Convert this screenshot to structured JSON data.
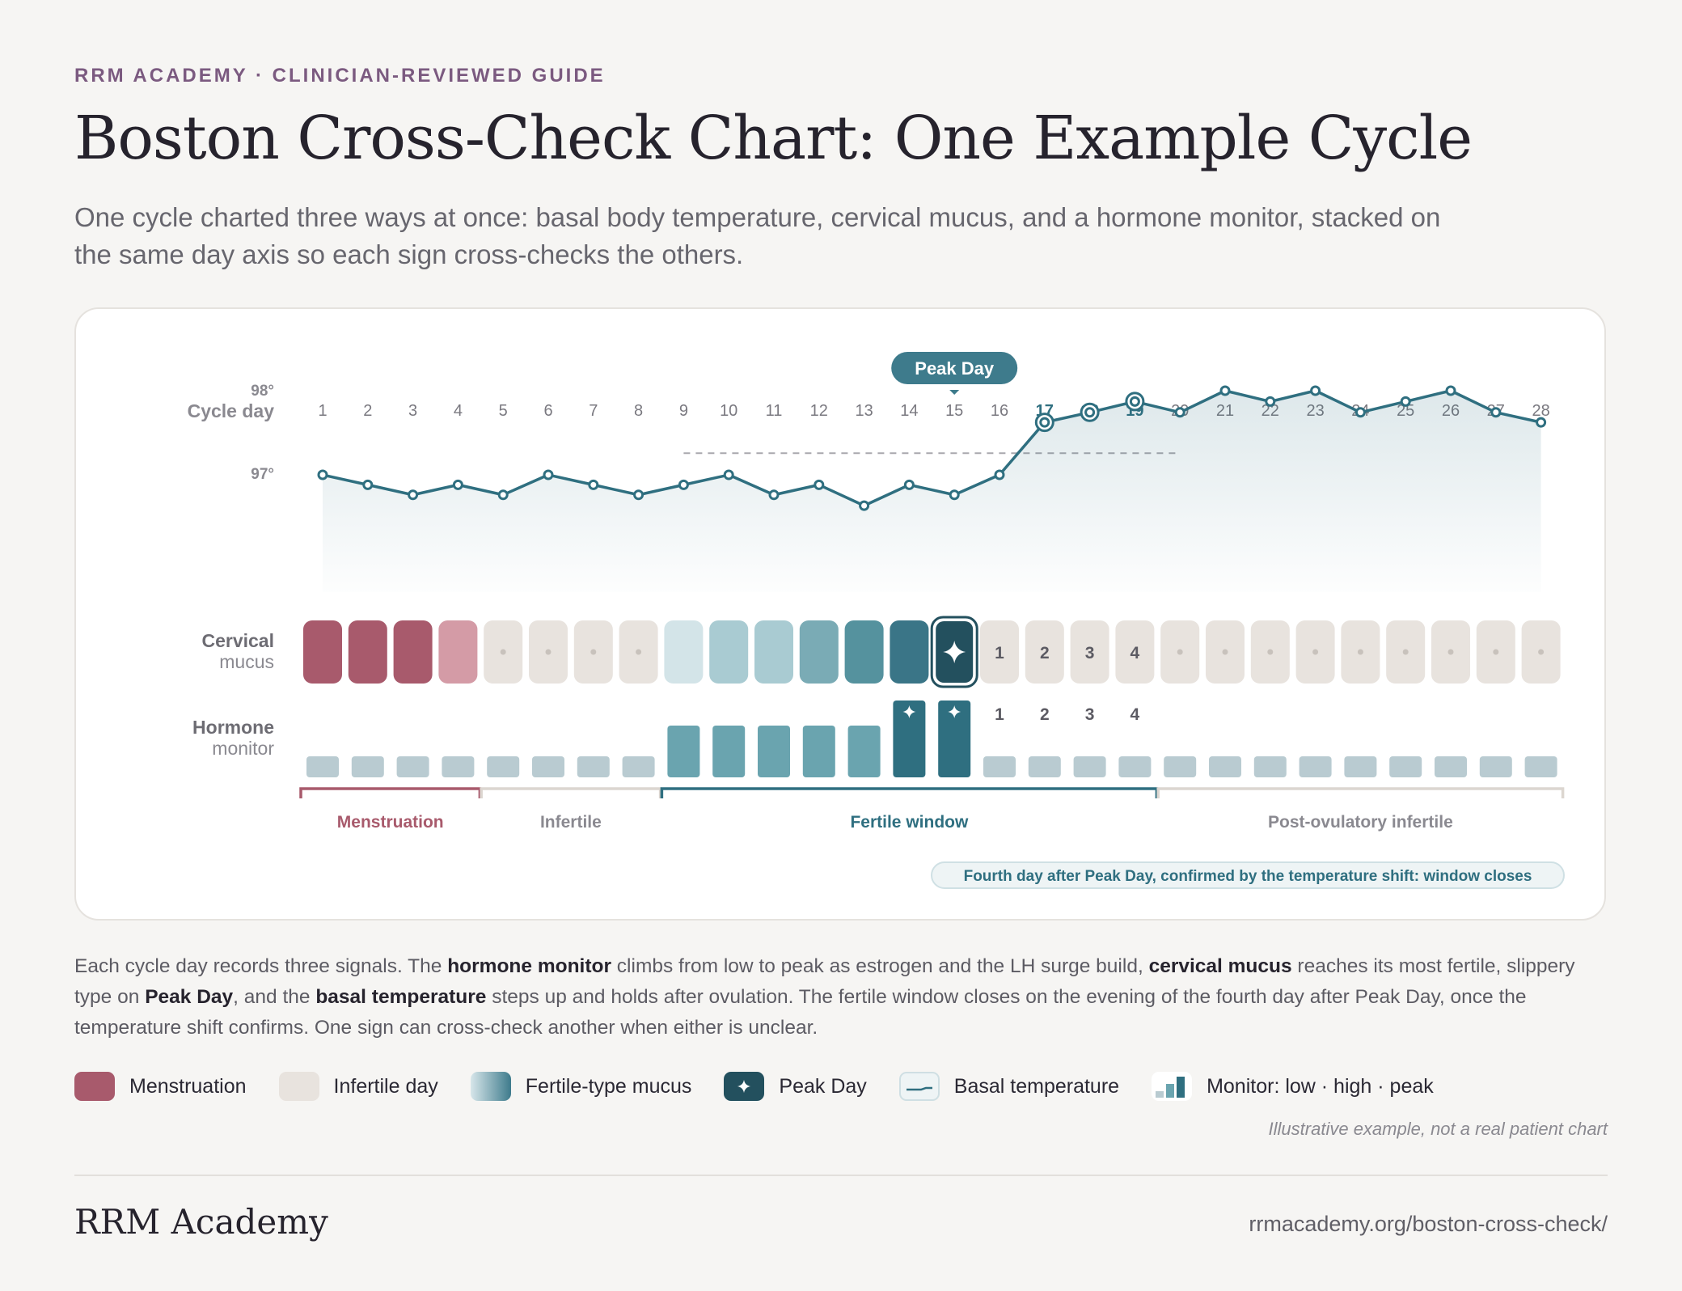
{
  "header": {
    "eyebrow": "RRM ACADEMY · CLINICIAN-REVIEWED GUIDE",
    "title": "Boston Cross-Check Chart: One Example Cycle",
    "subtitle": "One cycle charted three ways at once: basal body temperature, cervical mucus, and a hormone monitor, stacked on the same day axis so each sign cross-checks the others."
  },
  "colors": {
    "menstruation": "#a85a6c",
    "menstruation_light": "#d49ba6",
    "infertile": "#e8e3de",
    "teal": "#3e7b8c",
    "peak": "#23505e",
    "temp_line": "#2f6f80",
    "monitor_low": "#b9cbd1",
    "monitor_high": "#6aa4af",
    "monitor_peak": "#2f6f80"
  },
  "chart_data": {
    "type": "line",
    "days": [
      1,
      2,
      3,
      4,
      5,
      6,
      7,
      8,
      9,
      10,
      11,
      12,
      13,
      14,
      15,
      16,
      17,
      18,
      19,
      20,
      21,
      22,
      23,
      24,
      25,
      26,
      27,
      28
    ],
    "row_labels": {
      "cycle_day": "Cycle day",
      "mucus": [
        "Cervical",
        "mucus"
      ],
      "monitor": [
        "Hormone",
        "monitor"
      ]
    },
    "peak_day": 15,
    "peak_label": "Peak Day",
    "highlight_days": [
      17,
      18,
      19
    ],
    "temperature": {
      "y_ticks": [
        "98°",
        "97°"
      ],
      "y_tick_values": [
        98.0,
        97.0
      ],
      "values": [
        96.99,
        96.87,
        96.75,
        96.87,
        96.75,
        96.99,
        96.87,
        96.75,
        96.87,
        96.99,
        96.75,
        96.87,
        96.62,
        96.87,
        96.75,
        96.99,
        97.62,
        97.74,
        97.87,
        97.74,
        98.0,
        97.87,
        98.0,
        97.74,
        97.87,
        98.0,
        97.74,
        97.62
      ],
      "shift_marked_days": [
        17,
        18,
        19
      ],
      "coverline": {
        "value": 97.25,
        "from_day": 9,
        "to_day": 20
      }
    },
    "mucus": {
      "types": [
        "menstruation",
        "menstruation",
        "menstruation",
        "menstruation_light",
        "dry",
        "dry",
        "dry",
        "dry",
        "fertile1",
        "fertile2",
        "fertile2",
        "fertile3",
        "fertile4",
        "fertile5",
        "peak",
        "count",
        "count",
        "count",
        "count",
        "dry",
        "dry",
        "dry",
        "dry",
        "dry",
        "dry",
        "dry",
        "dry",
        "dry"
      ],
      "count_labels": {
        "16": "1",
        "17": "2",
        "18": "3",
        "19": "4"
      }
    },
    "monitor": {
      "levels": [
        "low",
        "low",
        "low",
        "low",
        "low",
        "low",
        "low",
        "low",
        "high",
        "high",
        "high",
        "high",
        "high",
        "peak",
        "peak",
        "low",
        "low",
        "low",
        "low",
        "low",
        "low",
        "low",
        "low",
        "low",
        "low",
        "low",
        "low",
        "low"
      ],
      "count_labels": {
        "16": "1",
        "17": "2",
        "18": "3",
        "19": "4"
      }
    },
    "phases": [
      {
        "label": "Menstruation",
        "from_day": 1,
        "to_day": 4,
        "kind": "menstruation"
      },
      {
        "label": "Infertile",
        "from_day": 5,
        "to_day": 8,
        "kind": "infertile"
      },
      {
        "label": "Fertile window",
        "from_day": 9,
        "to_day": 19,
        "kind": "fertile"
      },
      {
        "label": "Post-ovulatory infertile",
        "from_day": 20,
        "to_day": 28,
        "kind": "infertile"
      }
    ],
    "annotation": "Fourth day after Peak Day, confirmed by the temperature shift: window closes"
  },
  "description": {
    "p1": "Each cycle day records three signals. The ",
    "b1": "hormone monitor",
    "p2": " climbs from low to peak as estrogen and the LH surge build, ",
    "b2": "cervical mucus",
    "p3": " reaches its most fertile, slippery type on ",
    "b3": "Peak Day",
    "p4": ", and the ",
    "b4": "basal temperature",
    "p5": " steps up and holds after ovulation. The fertile window closes on the evening of the fourth day after Peak Day, once the temperature shift confirms. One sign can cross-check another when either is unclear."
  },
  "legend": {
    "menstruation": "Menstruation",
    "infertile": "Infertile day",
    "fertile_mucus": "Fertile-type mucus",
    "peak_day": "Peak Day",
    "basal_temp": "Basal temperature",
    "monitor": "Monitor: low · high · peak"
  },
  "note": "Illustrative example, not a real patient chart",
  "footer": {
    "brand": "RRM Academy",
    "url": "rrmacademy.org/boston-cross-check/"
  }
}
